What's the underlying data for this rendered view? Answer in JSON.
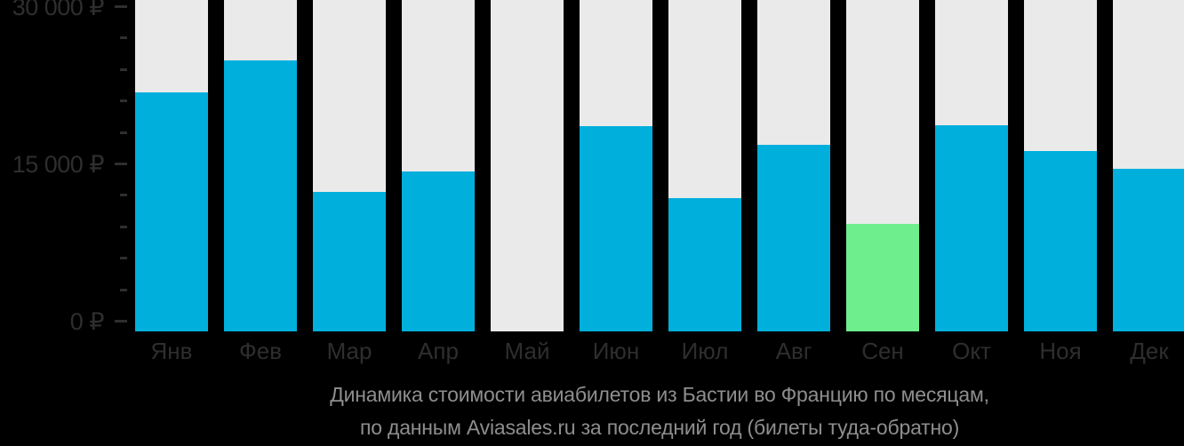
{
  "chart_data": {
    "type": "bar",
    "title": "Динамика стоимости авиабилетов из Бастии во Францию по месяцам,",
    "subtitle": "по данным Aviasales.ru за последний год (билеты туда-обратно)",
    "categories": [
      "Янв",
      "Фев",
      "Мар",
      "Апр",
      "Май",
      "Июн",
      "Июл",
      "Авг",
      "Сен",
      "Окт",
      "Ноя",
      "Дек"
    ],
    "values": [
      21800,
      24900,
      12300,
      14300,
      null,
      18600,
      11700,
      16800,
      9300,
      18700,
      16200,
      14500
    ],
    "currency": "₽",
    "highlight_index": 8,
    "highlight_category": "Сен",
    "missing_category": "Май",
    "ylim": [
      0,
      30000
    ],
    "y_ticks": [
      {
        "value": 0,
        "label": "0 ₽"
      },
      {
        "value": 15000,
        "label": "15 000 ₽"
      },
      {
        "value": 30000,
        "label": "30 000 ₽"
      }
    ],
    "minor_tick_step": 3000,
    "grid": false,
    "legend": false,
    "colors": {
      "bar": "#00AFDC",
      "highlight_bar": "#6FEE8D",
      "track": "#EAEAEA",
      "background": "#000000",
      "axis_text": "#2E2E2E",
      "caption_text": "#8E8E8E"
    }
  }
}
